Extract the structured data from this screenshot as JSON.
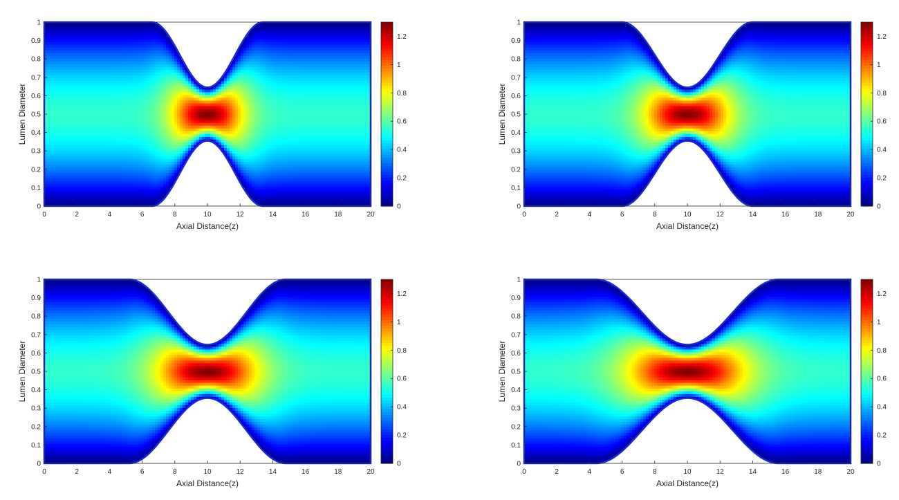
{
  "chart_data": [
    {
      "type": "heatmap",
      "panel": "top-left",
      "xlabel": "Axial Distance(z)",
      "ylabel": "Lumen Diameter",
      "xlim": [
        0,
        20
      ],
      "ylim": [
        0,
        1
      ],
      "xticks": [
        0,
        2,
        4,
        6,
        8,
        10,
        12,
        14,
        16,
        18,
        20
      ],
      "yticks": [
        0,
        0.1,
        0.2,
        0.3,
        0.4,
        0.5,
        0.6,
        0.7,
        0.8,
        0.9,
        1
      ],
      "colorbar": {
        "range": [
          0,
          1.3
        ],
        "ticks": [
          0,
          0.2,
          0.4,
          0.6,
          0.8,
          1,
          1.2
        ],
        "colormap": "jet"
      },
      "stenosis": {
        "center_z": 10,
        "start_z": 6.6,
        "end_z": 13.4,
        "throat_lower": 0.355,
        "throat_upper": 0.645
      },
      "peak_value": 1.3,
      "grid": false
    },
    {
      "type": "heatmap",
      "panel": "top-right",
      "xlabel": "Axial Distance(z)",
      "ylabel": "Lumen Diameter",
      "xlim": [
        0,
        20
      ],
      "ylim": [
        0,
        1
      ],
      "xticks": [
        0,
        2,
        4,
        6,
        8,
        10,
        12,
        14,
        16,
        18,
        20
      ],
      "yticks": [
        0,
        0.1,
        0.2,
        0.3,
        0.4,
        0.5,
        0.6,
        0.7,
        0.8,
        0.9,
        1
      ],
      "colorbar": {
        "range": [
          0,
          1.3
        ],
        "ticks": [
          0,
          0.2,
          0.4,
          0.6,
          0.8,
          1,
          1.2
        ],
        "colormap": "jet"
      },
      "stenosis": {
        "center_z": 10,
        "start_z": 6.0,
        "end_z": 14.0,
        "throat_lower": 0.355,
        "throat_upper": 0.645
      },
      "peak_value": 1.3,
      "grid": false
    },
    {
      "type": "heatmap",
      "panel": "bottom-left",
      "xlabel": "Axial Distance(z)",
      "ylabel": "Lumen Diameter",
      "xlim": [
        0,
        20
      ],
      "ylim": [
        0,
        1
      ],
      "xticks": [
        0,
        2,
        4,
        6,
        8,
        10,
        12,
        14,
        16,
        18,
        20
      ],
      "yticks": [
        0,
        0.1,
        0.2,
        0.3,
        0.4,
        0.5,
        0.6,
        0.7,
        0.8,
        0.9,
        1
      ],
      "colorbar": {
        "range": [
          0,
          1.3
        ],
        "ticks": [
          0,
          0.2,
          0.4,
          0.6,
          0.8,
          1,
          1.2
        ],
        "colormap": "jet"
      },
      "stenosis": {
        "center_z": 10,
        "start_z": 5.2,
        "end_z": 14.8,
        "throat_lower": 0.355,
        "throat_upper": 0.645
      },
      "peak_value": 1.3,
      "grid": false
    },
    {
      "type": "heatmap",
      "panel": "bottom-right",
      "xlabel": "Axial Distance(z)",
      "ylabel": "Lumen Diameter",
      "xlim": [
        0,
        20
      ],
      "ylim": [
        0,
        1
      ],
      "xticks": [
        0,
        2,
        4,
        6,
        8,
        10,
        12,
        14,
        16,
        18,
        20
      ],
      "yticks": [
        0,
        0.1,
        0.2,
        0.3,
        0.4,
        0.5,
        0.6,
        0.7,
        0.8,
        0.9,
        1
      ],
      "colorbar": {
        "range": [
          0,
          1.3
        ],
        "ticks": [
          0,
          0.2,
          0.4,
          0.6,
          0.8,
          1,
          1.2
        ],
        "colormap": "jet"
      },
      "stenosis": {
        "center_z": 10,
        "start_z": 4.4,
        "end_z": 15.6,
        "throat_lower": 0.355,
        "throat_upper": 0.645
      },
      "peak_value": 1.3,
      "grid": false
    }
  ]
}
